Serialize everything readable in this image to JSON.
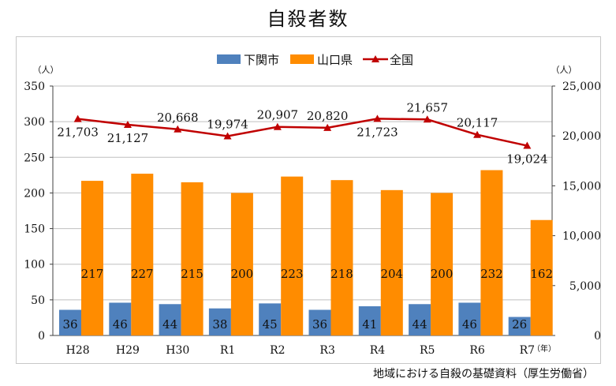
{
  "title": "自殺者数",
  "source": "地域における自殺の基礎資料（厚生労働省）",
  "chart_data": {
    "type": "bar",
    "categories": [
      "H28",
      "H29",
      "H30",
      "R1",
      "R2",
      "R3",
      "R4",
      "R5",
      "R6",
      "R7"
    ],
    "x_unit": "（年）",
    "left_axis": {
      "unit": "（人）",
      "ylim": [
        0,
        350
      ],
      "ticks": [
        "0",
        "50",
        "100",
        "150",
        "200",
        "250",
        "300",
        "350"
      ],
      "tick_values": [
        0,
        50,
        100,
        150,
        200,
        250,
        300,
        350
      ]
    },
    "right_axis": {
      "unit": "（人）",
      "ylim": [
        0,
        25000
      ],
      "ticks": [
        "0",
        "5,000",
        "10,000",
        "15,000",
        "20,000",
        "25,000"
      ],
      "tick_values": [
        0,
        5000,
        10000,
        15000,
        20000,
        25000
      ]
    },
    "series": [
      {
        "name": "下関市",
        "type": "bar",
        "axis": "left",
        "color": "#4f81bd",
        "values": [
          36,
          46,
          44,
          38,
          45,
          36,
          41,
          44,
          46,
          26
        ],
        "labels": [
          "36",
          "46",
          "44",
          "38",
          "45",
          "36",
          "41",
          "44",
          "46",
          "26"
        ]
      },
      {
        "name": "山口県",
        "type": "bar",
        "axis": "left",
        "color": "#ff8c00",
        "values": [
          217,
          227,
          215,
          200,
          223,
          218,
          204,
          200,
          232,
          162
        ],
        "labels": [
          "217",
          "227",
          "215",
          "200",
          "223",
          "218",
          "204",
          "200",
          "232",
          "162"
        ]
      },
      {
        "name": "全国",
        "type": "line",
        "axis": "right",
        "color": "#c00000",
        "values": [
          21703,
          21127,
          20668,
          19974,
          20907,
          20820,
          21723,
          21657,
          20117,
          19024
        ],
        "labels": [
          "21,703",
          "21,127",
          "20,668",
          "19,974",
          "20,907",
          "20,820",
          "21,723",
          "21,657",
          "20,117",
          "19,024"
        ]
      }
    ],
    "legend": "top-center",
    "grid": true
  }
}
